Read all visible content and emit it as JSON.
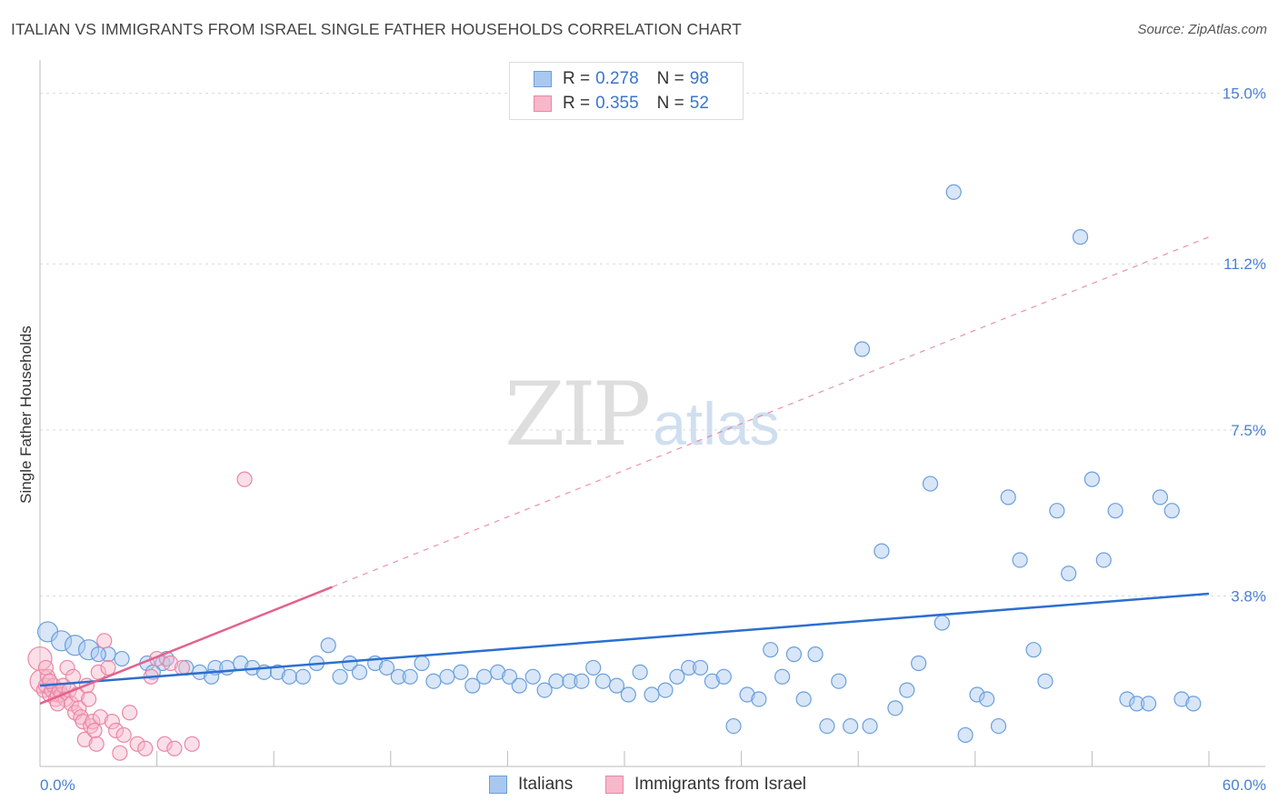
{
  "title": "ITALIAN VS IMMIGRANTS FROM ISRAEL SINGLE FATHER HOUSEHOLDS CORRELATION CHART",
  "source": "Source: ZipAtlas.com",
  "watermark": {
    "zip": "ZIP",
    "atlas": "atlas"
  },
  "legend": {
    "italians": {
      "r_label": "R =",
      "r_value": "0.278",
      "n_label": "N =",
      "n_value": "98"
    },
    "israel": {
      "r_label": "R =",
      "r_value": "0.355",
      "n_label": "N =",
      "n_value": "52"
    }
  },
  "bottom_legend": {
    "italians": "Italians",
    "israel": "Immigrants from Israel"
  },
  "colors": {
    "italians_fill": "#a9c8f0",
    "italians_stroke": "#6a9fdc",
    "italians_line": "#2b6fd0",
    "israel_fill": "#f7b8cb",
    "israel_stroke": "#eb86a6",
    "israel_line": "#e4628c",
    "tick": "#4a7fd0",
    "grid": "#d9d9d9"
  },
  "chart_data": {
    "type": "scatter",
    "title": "ITALIAN VS IMMIGRANTS FROM ISRAEL SINGLE FATHER HOUSEHOLDS CORRELATION CHART",
    "xlabel": "",
    "ylabel": "Single Father Households",
    "xlim": [
      0,
      60
    ],
    "ylim": [
      0,
      15.5
    ],
    "x_tick_labels": [
      "0.0%",
      "60.0%"
    ],
    "y_ticks": [
      3.8,
      7.5,
      11.2,
      15.0
    ],
    "y_tick_labels": [
      "3.8%",
      "7.5%",
      "11.2%",
      "15.0%"
    ],
    "grid": "horizontal dashed",
    "series": [
      {
        "name": "Italians",
        "points": [
          [
            0.4,
            3.0
          ],
          [
            1.1,
            2.8
          ],
          [
            1.8,
            2.7
          ],
          [
            2.5,
            2.6
          ],
          [
            3.5,
            2.5
          ],
          [
            4.2,
            2.4
          ],
          [
            5.5,
            2.3
          ],
          [
            6.3,
            2.3
          ],
          [
            5.8,
            2.1
          ],
          [
            6.5,
            2.4
          ],
          [
            7.5,
            2.2
          ],
          [
            8.2,
            2.1
          ],
          [
            9.0,
            2.2
          ],
          [
            9.6,
            2.2
          ],
          [
            10.3,
            2.3
          ],
          [
            10.9,
            2.2
          ],
          [
            11.5,
            2.1
          ],
          [
            12.2,
            2.1
          ],
          [
            12.8,
            2.0
          ],
          [
            13.5,
            2.0
          ],
          [
            14.2,
            2.3
          ],
          [
            14.8,
            2.7
          ],
          [
            15.4,
            2.0
          ],
          [
            15.9,
            2.3
          ],
          [
            16.4,
            2.1
          ],
          [
            17.2,
            2.3
          ],
          [
            17.8,
            2.2
          ],
          [
            18.4,
            2.0
          ],
          [
            19.0,
            2.0
          ],
          [
            19.6,
            2.3
          ],
          [
            20.2,
            1.9
          ],
          [
            20.9,
            2.0
          ],
          [
            21.6,
            2.1
          ],
          [
            22.2,
            1.8
          ],
          [
            22.8,
            2.0
          ],
          [
            23.5,
            2.1
          ],
          [
            24.1,
            2.0
          ],
          [
            24.6,
            1.8
          ],
          [
            25.3,
            2.0
          ],
          [
            25.9,
            1.7
          ],
          [
            26.5,
            1.9
          ],
          [
            27.2,
            1.9
          ],
          [
            27.8,
            1.9
          ],
          [
            28.4,
            2.2
          ],
          [
            28.9,
            1.9
          ],
          [
            29.6,
            1.8
          ],
          [
            30.2,
            1.6
          ],
          [
            30.8,
            2.1
          ],
          [
            31.4,
            1.6
          ],
          [
            32.1,
            1.7
          ],
          [
            32.7,
            2.0
          ],
          [
            33.3,
            2.2
          ],
          [
            33.9,
            2.2
          ],
          [
            34.5,
            1.9
          ],
          [
            35.1,
            2.0
          ],
          [
            35.6,
            0.9
          ],
          [
            36.3,
            1.6
          ],
          [
            36.9,
            1.5
          ],
          [
            37.5,
            2.6
          ],
          [
            38.1,
            2.0
          ],
          [
            38.7,
            2.5
          ],
          [
            39.2,
            1.5
          ],
          [
            39.8,
            2.5
          ],
          [
            40.4,
            0.9
          ],
          [
            41.0,
            1.9
          ],
          [
            41.6,
            0.9
          ],
          [
            42.2,
            9.3
          ],
          [
            42.6,
            0.9
          ],
          [
            43.2,
            4.8
          ],
          [
            43.9,
            1.3
          ],
          [
            44.5,
            1.7
          ],
          [
            45.1,
            2.3
          ],
          [
            45.7,
            6.3
          ],
          [
            46.3,
            3.2
          ],
          [
            46.9,
            12.8
          ],
          [
            47.5,
            0.7
          ],
          [
            48.1,
            1.6
          ],
          [
            48.6,
            1.5
          ],
          [
            49.2,
            0.9
          ],
          [
            49.7,
            6.0
          ],
          [
            50.3,
            4.6
          ],
          [
            51.0,
            2.6
          ],
          [
            51.6,
            1.9
          ],
          [
            52.2,
            5.7
          ],
          [
            52.8,
            4.3
          ],
          [
            53.4,
            11.8
          ],
          [
            54.0,
            6.4
          ],
          [
            54.6,
            4.6
          ],
          [
            55.2,
            5.7
          ],
          [
            55.8,
            1.5
          ],
          [
            56.3,
            1.4
          ],
          [
            56.9,
            1.4
          ],
          [
            57.5,
            6.0
          ],
          [
            58.1,
            5.7
          ],
          [
            58.6,
            1.5
          ],
          [
            59.2,
            1.4
          ],
          [
            3.0,
            2.5
          ],
          [
            8.8,
            2.0
          ]
        ],
        "trend": [
          [
            0,
            1.8
          ],
          [
            60,
            3.85
          ]
        ]
      },
      {
        "name": "Immigrants from Israel",
        "points": [
          [
            0.0,
            2.4
          ],
          [
            0.1,
            1.9
          ],
          [
            0.2,
            1.7
          ],
          [
            0.3,
            1.8
          ],
          [
            0.4,
            2.0
          ],
          [
            0.5,
            1.6
          ],
          [
            0.6,
            1.7
          ],
          [
            0.7,
            1.8
          ],
          [
            0.8,
            1.5
          ],
          [
            0.9,
            1.6
          ],
          [
            1.0,
            1.7
          ],
          [
            1.1,
            1.6
          ],
          [
            1.2,
            1.8
          ],
          [
            1.3,
            1.5
          ],
          [
            1.4,
            2.2
          ],
          [
            1.5,
            1.7
          ],
          [
            1.6,
            1.4
          ],
          [
            1.7,
            2.0
          ],
          [
            1.8,
            1.2
          ],
          [
            1.9,
            1.6
          ],
          [
            2.0,
            1.3
          ],
          [
            2.1,
            1.1
          ],
          [
            2.2,
            1.0
          ],
          [
            2.3,
            0.6
          ],
          [
            2.4,
            1.8
          ],
          [
            2.5,
            1.5
          ],
          [
            2.6,
            0.9
          ],
          [
            2.7,
            1.0
          ],
          [
            2.8,
            0.8
          ],
          [
            2.9,
            0.5
          ],
          [
            3.0,
            2.1
          ],
          [
            3.1,
            1.1
          ],
          [
            3.3,
            2.8
          ],
          [
            3.5,
            2.2
          ],
          [
            3.7,
            1.0
          ],
          [
            3.9,
            0.8
          ],
          [
            4.1,
            0.3
          ],
          [
            4.3,
            0.7
          ],
          [
            4.6,
            1.2
          ],
          [
            5.0,
            0.5
          ],
          [
            5.4,
            0.4
          ],
          [
            5.7,
            2.0
          ],
          [
            6.0,
            2.4
          ],
          [
            6.4,
            0.5
          ],
          [
            6.7,
            2.3
          ],
          [
            6.9,
            0.4
          ],
          [
            7.3,
            2.2
          ],
          [
            7.8,
            0.5
          ],
          [
            0.3,
            2.2
          ],
          [
            0.5,
            1.9
          ],
          [
            0.9,
            1.4
          ],
          [
            10.5,
            6.4
          ]
        ],
        "trend_solid": [
          [
            0,
            1.4
          ],
          [
            15,
            4.0
          ]
        ],
        "trend_dashed": [
          [
            15,
            4.0
          ],
          [
            60,
            11.8
          ]
        ]
      }
    ]
  }
}
